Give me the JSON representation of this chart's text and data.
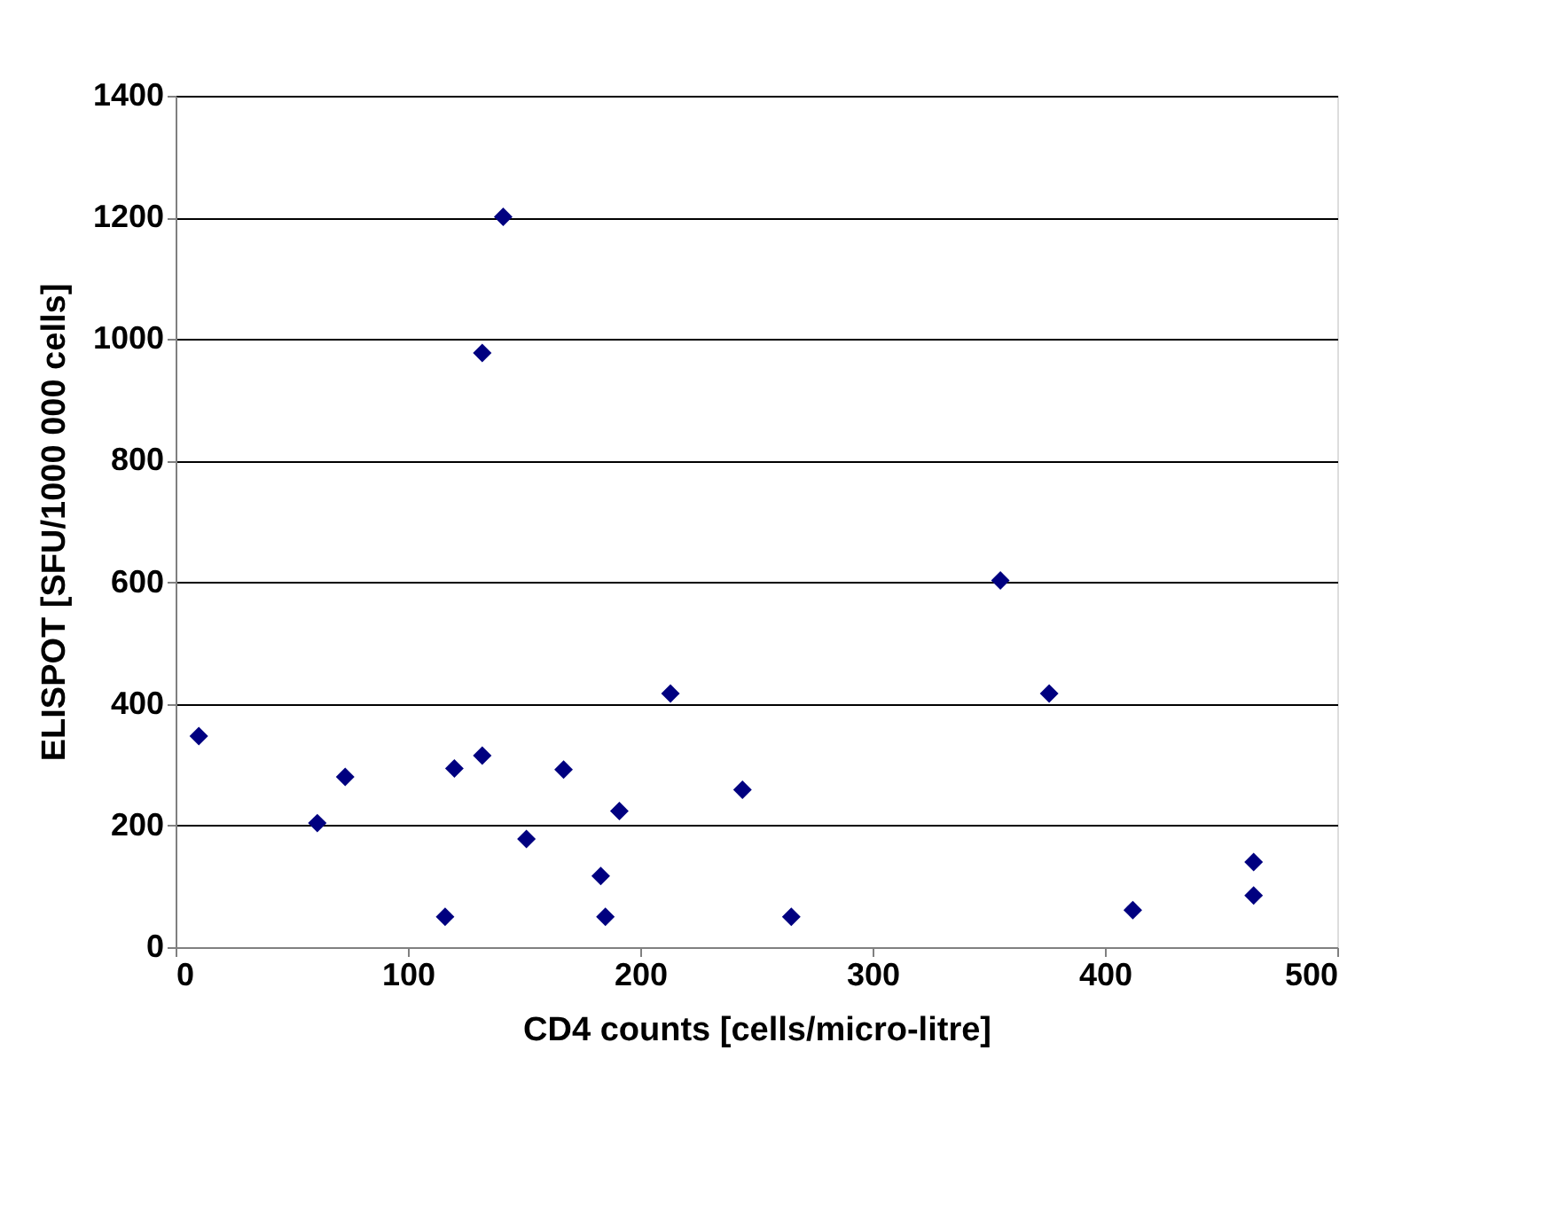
{
  "chart_data": {
    "type": "scatter",
    "xlabel": "CD4 counts [cells/micro-litre]",
    "ylabel": "ELISPOT [SFU/1000 000 cells]",
    "x": [
      10,
      61,
      73,
      116,
      120,
      132,
      132,
      141,
      151,
      167,
      183,
      185,
      191,
      213,
      244,
      265,
      355,
      376,
      412,
      464,
      464
    ],
    "series": [
      {
        "color": "#000080",
        "values": [
          347,
          204,
          280,
          50,
          294,
          315,
          977,
          1201,
          178,
          292,
          117,
          50,
          224,
          417,
          259,
          50,
          603,
          417,
          61,
          140,
          85
        ]
      }
    ],
    "xlim": [
      0,
      500
    ],
    "xticks": [
      0,
      100,
      200,
      300,
      400,
      500
    ],
    "ylim": [
      0,
      1400
    ],
    "yticks": [
      0,
      200,
      400,
      600,
      800,
      1000,
      1200,
      1400
    ],
    "grid": "y",
    "marker": "diamond"
  }
}
